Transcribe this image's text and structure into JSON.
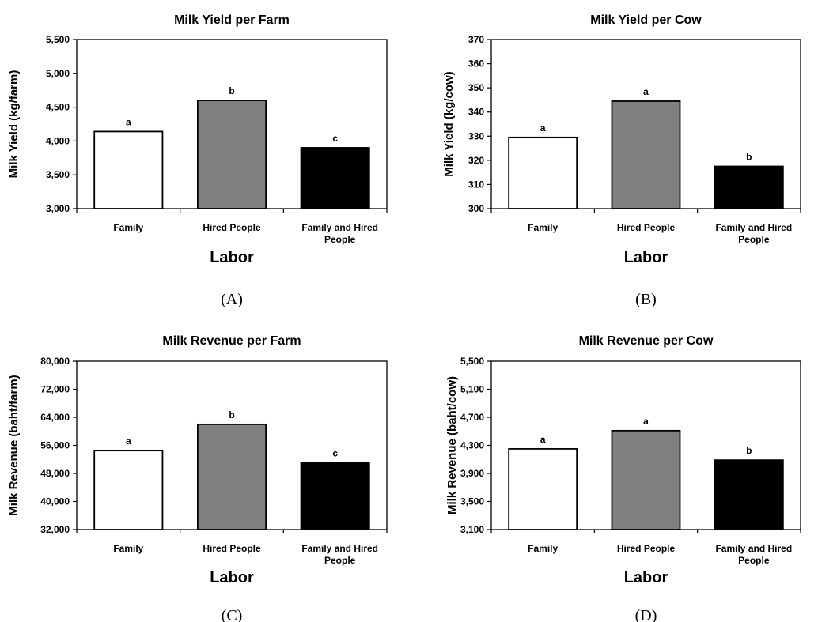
{
  "chart_data": [
    {
      "type": "bar",
      "panel_label": "(A)",
      "title": "Milk Yield per Farm",
      "ylabel": "Milk Yield (kg/farm)",
      "xlabel": "Labor",
      "categories": [
        "Family",
        "Hired People",
        "Family and Hired People"
      ],
      "values": [
        4140,
        4600,
        3900
      ],
      "significance": [
        "a",
        "b",
        "c"
      ],
      "ylim": [
        3000,
        5500
      ],
      "yticks": [
        3000,
        3500,
        4000,
        4500,
        5000,
        5500
      ],
      "ytick_labels": [
        "3,000",
        "3,500",
        "4,000",
        "4,500",
        "5,000",
        "5,500"
      ],
      "bar_colors": [
        "#ffffff",
        "#808080",
        "#000000"
      ],
      "grid": false
    },
    {
      "type": "bar",
      "panel_label": "(B)",
      "title": "Milk Yield per Cow",
      "ylabel": "Milk Yield (kg/cow)",
      "xlabel": "Labor",
      "categories": [
        "Family",
        "Hired People",
        "Family and Hired People"
      ],
      "values": [
        329.5,
        344.5,
        317.5
      ],
      "significance": [
        "a",
        "a",
        "b"
      ],
      "ylim": [
        300,
        370
      ],
      "yticks": [
        300,
        310,
        320,
        330,
        340,
        350,
        360,
        370
      ],
      "ytick_labels": [
        "300",
        "310",
        "320",
        "330",
        "340",
        "350",
        "360",
        "370"
      ],
      "bar_colors": [
        "#ffffff",
        "#808080",
        "#000000"
      ],
      "grid": false
    },
    {
      "type": "bar",
      "panel_label": "(C)",
      "title": "Milk Revenue per Farm",
      "ylabel": "Milk Revenue (baht/farm)",
      "xlabel": "Labor",
      "categories": [
        "Family",
        "Hired People",
        "Family and Hired People"
      ],
      "values": [
        54500,
        62000,
        51000
      ],
      "significance": [
        "a",
        "b",
        "c"
      ],
      "ylim": [
        32000,
        80000
      ],
      "yticks": [
        32000,
        40000,
        48000,
        56000,
        64000,
        72000,
        80000
      ],
      "ytick_labels": [
        "32,000",
        "40,000",
        "48,000",
        "56,000",
        "64,000",
        "72,000",
        "80,000"
      ],
      "bar_colors": [
        "#ffffff",
        "#808080",
        "#000000"
      ],
      "grid": false
    },
    {
      "type": "bar",
      "panel_label": "(D)",
      "title": "Milk Revenue per Cow",
      "ylabel": "Milk Revenue (baht/cow)",
      "xlabel": "Labor",
      "categories": [
        "Family",
        "Hired People",
        "Family and Hired People"
      ],
      "values": [
        4250,
        4510,
        4090
      ],
      "significance": [
        "a",
        "a",
        "b"
      ],
      "ylim": [
        3100,
        5500
      ],
      "yticks": [
        3100,
        3500,
        3900,
        4300,
        4700,
        5100,
        5500
      ],
      "ytick_labels": [
        "3,100",
        "3,500",
        "3,900",
        "4,300",
        "4,700",
        "5,100",
        "5,500"
      ],
      "bar_colors": [
        "#ffffff",
        "#808080",
        "#000000"
      ],
      "grid": false
    }
  ]
}
